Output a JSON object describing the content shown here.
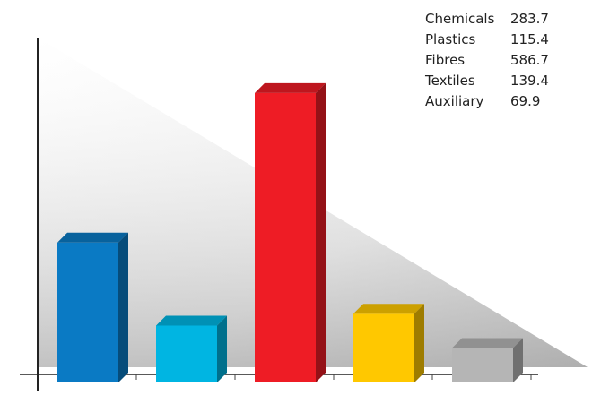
{
  "chart_data": {
    "type": "bar",
    "categories": [
      "Chemicals",
      "Plastics",
      "Fibres",
      "Textiles",
      "Auxiliary"
    ],
    "values": [
      283.7,
      115.4,
      586.7,
      139.4,
      69.9
    ],
    "value_labels": [
      "283.7",
      "115.4",
      "586.7",
      "139.4",
      "69.9"
    ],
    "colors": [
      "#0a7ac4",
      "#00b5e2",
      "#ee1c25",
      "#ffc800",
      "#b5b5b5"
    ],
    "ylim": [
      0,
      730
    ],
    "legend_position": "top-right",
    "grid": false,
    "style": "3d-bars"
  }
}
